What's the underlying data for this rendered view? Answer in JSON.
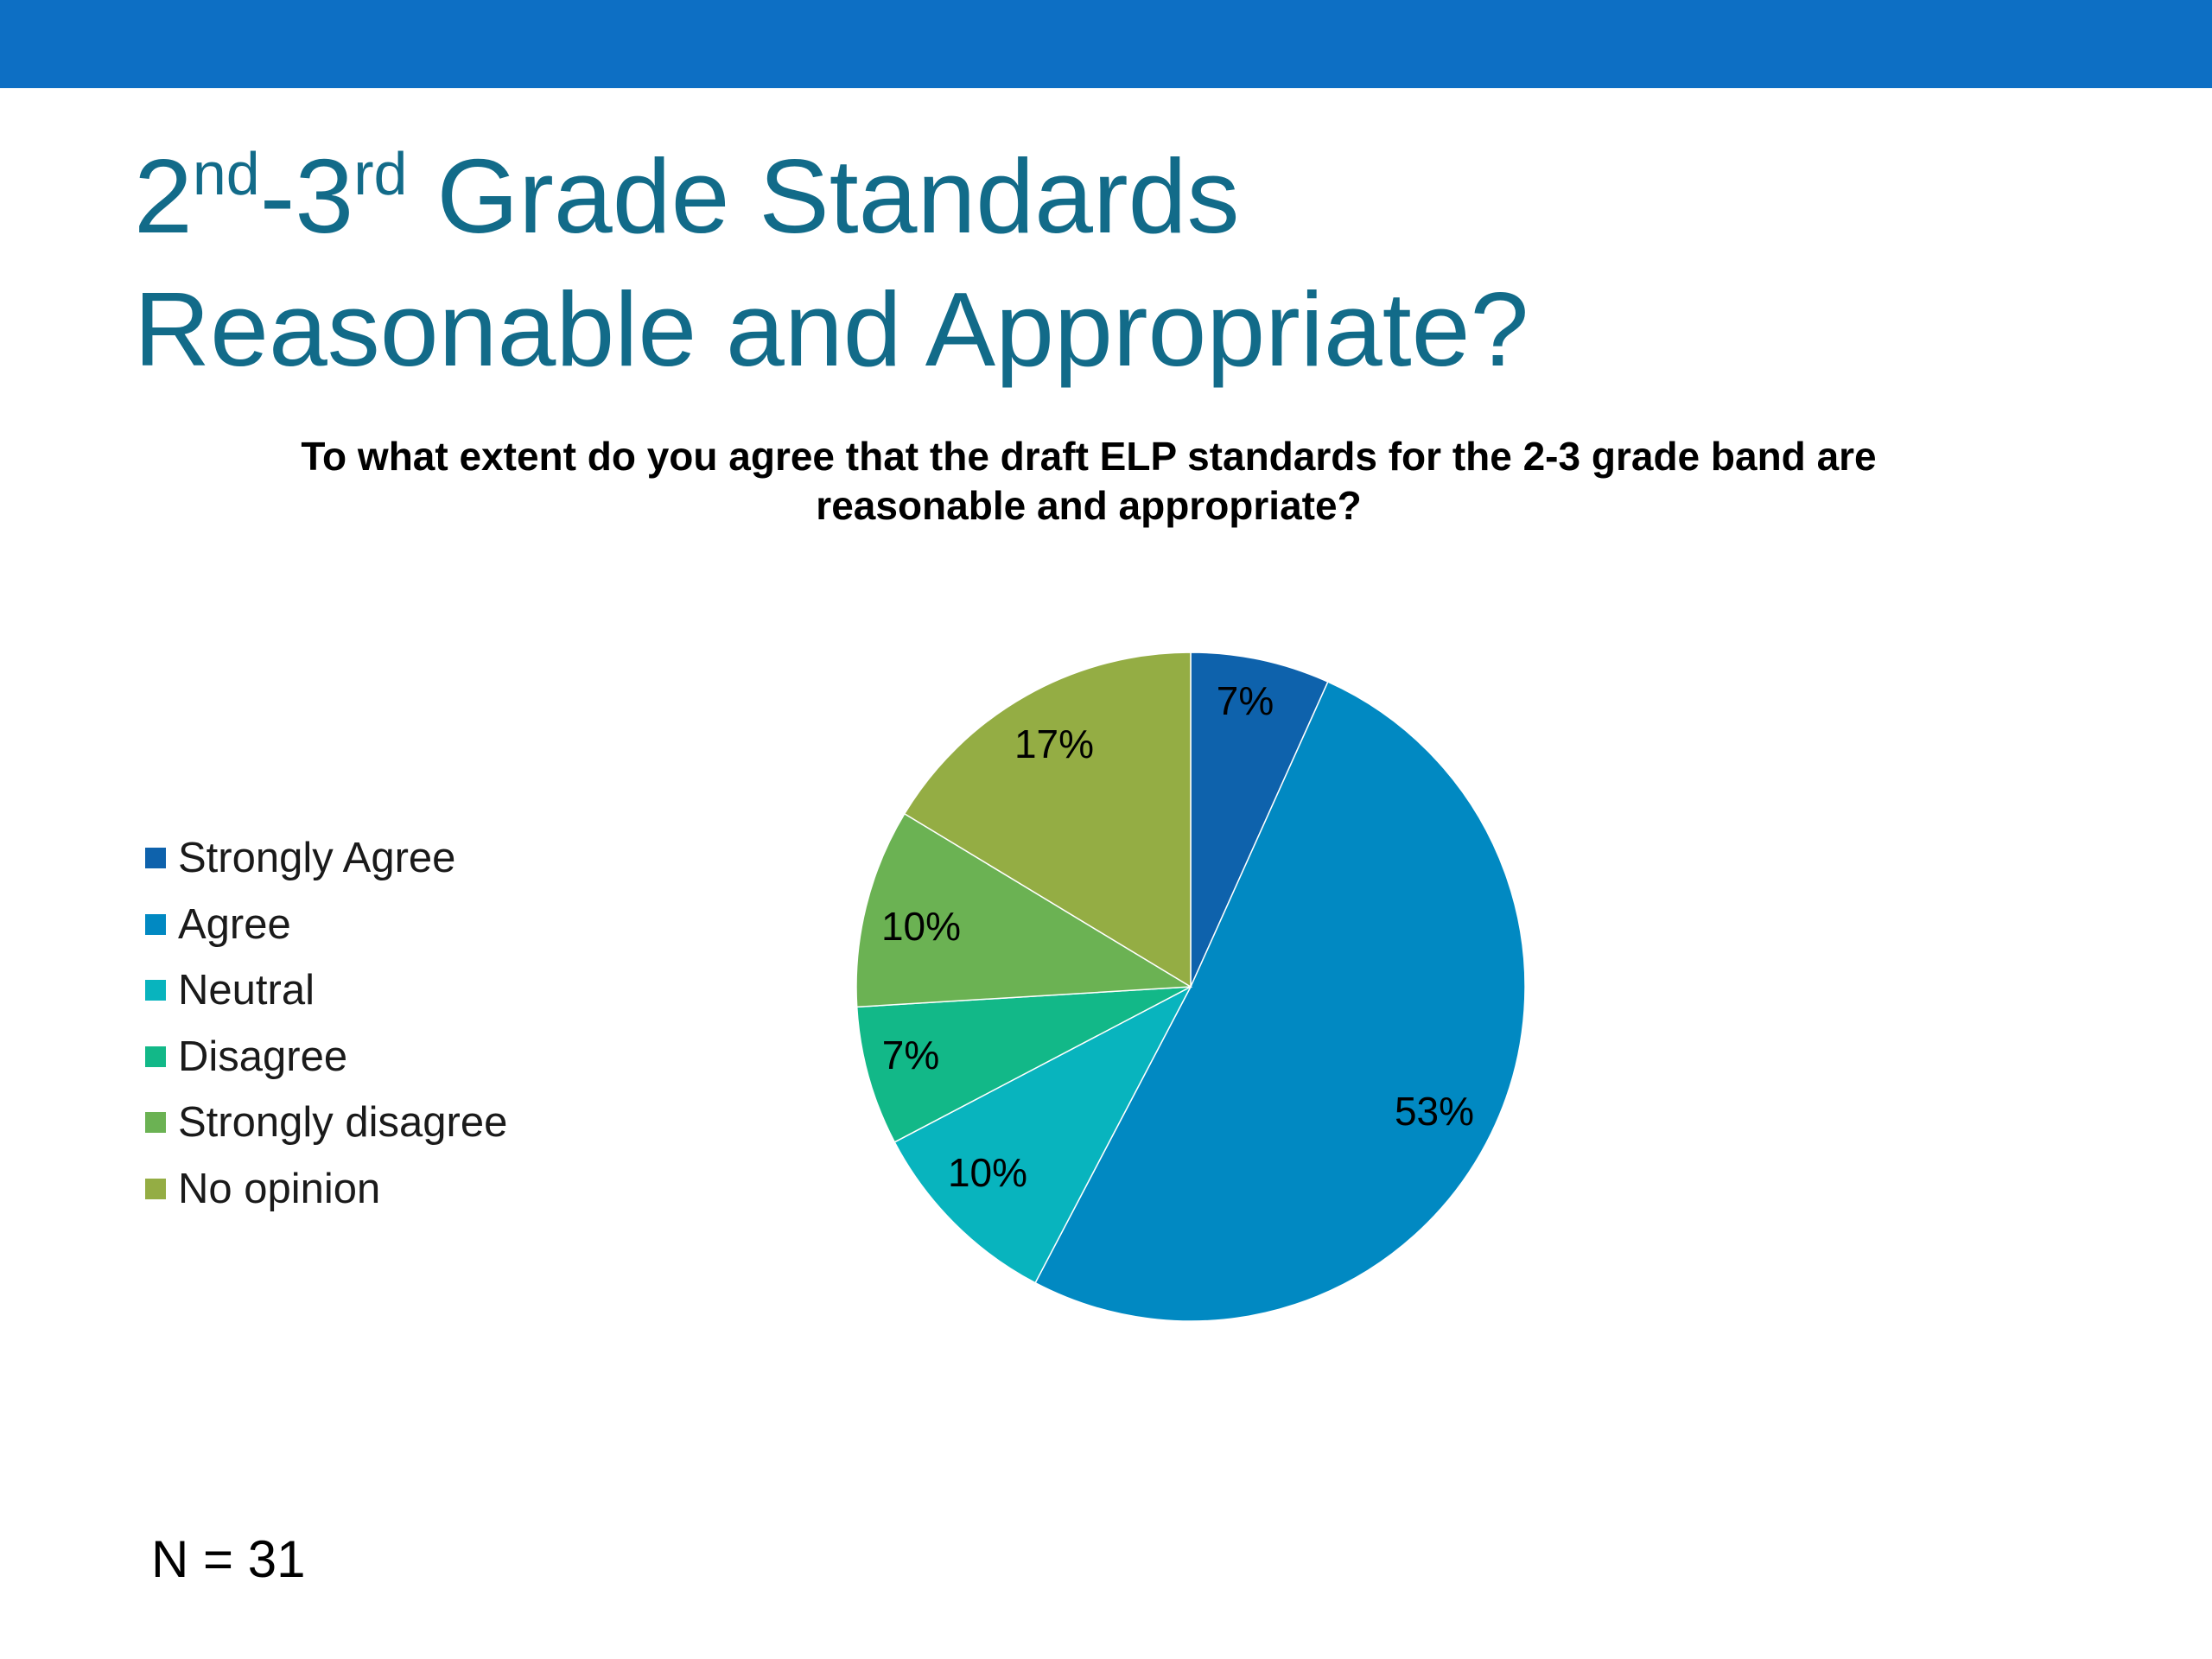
{
  "slide": {
    "title_line1_part1": "2",
    "title_sup1": "nd",
    "title_line1_part2": "-3",
    "title_sup2": "rd",
    "title_line1_part3": " Grade Standards",
    "title_line2": "Reasonable and Appropriate?",
    "n_label": "N = 31",
    "header_color": "#0d6fc4",
    "title_color": "#126b89"
  },
  "chart_data": {
    "type": "pie",
    "title": "To what extent do you agree that the draft ELP standards for the 2-3 grade band are reasonable and appropriate?",
    "categories": [
      "Strongly Agree",
      "Agree",
      "Neutral",
      "Disagree",
      "Strongly disagree",
      "No opinion"
    ],
    "values": [
      7,
      53,
      10,
      7,
      10,
      17
    ],
    "value_labels": [
      "7%",
      "53%",
      "10%",
      "7%",
      "10%",
      "17%"
    ],
    "colors": [
      "#0e62ac",
      "#0189c2",
      "#08b4be",
      "#12b888",
      "#6bb253",
      "#94ad44"
    ],
    "start_angle": "12 o'clock",
    "direction": "clockwise",
    "legend_position": "left"
  }
}
